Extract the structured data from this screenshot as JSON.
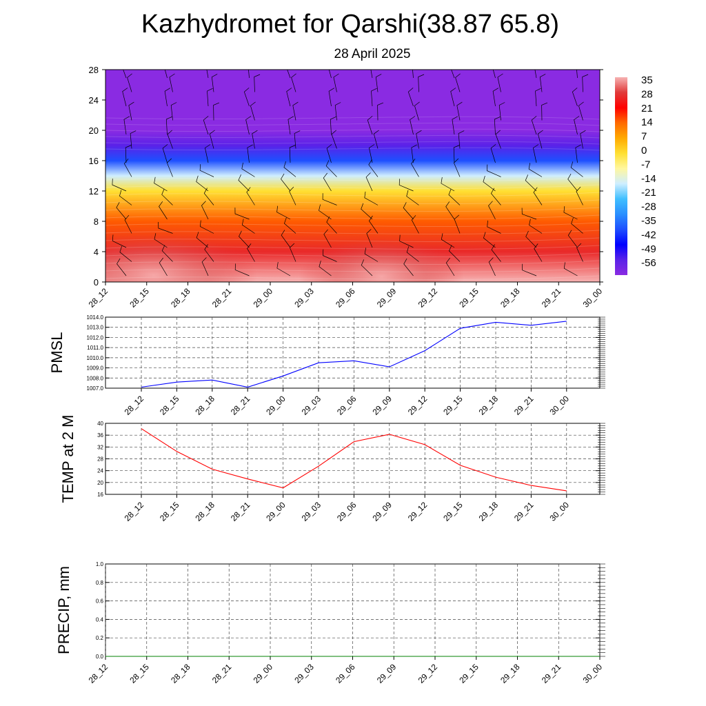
{
  "header": {
    "title": "Kazhydromet for Qarshi(38.87 65.8)",
    "date": "28 April 2025"
  },
  "chart_data": [
    {
      "type": "heatmap",
      "name": "vertical-cross-section",
      "x_labels": [
        "28_12",
        "28_15",
        "28_18",
        "28_21",
        "29_00",
        "29_03",
        "29_06",
        "29_09",
        "29_12",
        "29_15",
        "29_18",
        "29_21",
        "30_00"
      ],
      "ylim": [
        0,
        28
      ],
      "y_ticks": [
        0,
        4,
        8,
        12,
        16,
        20,
        24,
        28
      ],
      "legend_placement": "right",
      "colorbar": {
        "labels": [
          "35",
          "28",
          "21",
          "14",
          "7",
          "0",
          "-7",
          "-14",
          "-21",
          "-28",
          "-35",
          "-42",
          "-49",
          "-56"
        ],
        "colors": [
          "#f7b3b3",
          "#e03a3a",
          "#ff0000",
          "#ff6a00",
          "#ffaa00",
          "#ffe033",
          "#fff7a0",
          "#cfeeff",
          "#40bfff",
          "#2a8fff",
          "#1e4fff",
          "#0000ff",
          "#5a22e8",
          "#8a2be2"
        ]
      },
      "temperature_profile": [
        {
          "height": 0,
          "temp": 35
        },
        {
          "height": 4,
          "temp": 26
        },
        {
          "height": 8,
          "temp": 15
        },
        {
          "height": 12,
          "temp": 0
        },
        {
          "height": 14,
          "temp": -14
        },
        {
          "height": 16,
          "temp": -35
        },
        {
          "height": 18,
          "temp": -49
        },
        {
          "height": 20,
          "temp": -56
        },
        {
          "height": 28,
          "temp": -60
        }
      ],
      "wind_barbs": true
    },
    {
      "type": "line",
      "name": "pmsl",
      "ylabel": "PMSL",
      "categories": [
        "28_12",
        "28_15",
        "28_18",
        "28_21",
        "29_00",
        "29_03",
        "29_06",
        "29_09",
        "29_12",
        "29_15",
        "29_18",
        "29_21",
        "30_00"
      ],
      "values": [
        1007.1,
        1007.6,
        1007.8,
        1007.1,
        1008.2,
        1009.5,
        1009.7,
        1009.1,
        1010.7,
        1012.9,
        1013.5,
        1013.2,
        1013.6
      ],
      "ylim": [
        1007.0,
        1014.0
      ],
      "y_ticks": [
        "1007.0",
        "1008.0",
        "1009.0",
        "1010.0",
        "1011.0",
        "1012.0",
        "1013.0",
        "1014.0"
      ],
      "color": "#0000ff",
      "grid": true
    },
    {
      "type": "line",
      "name": "temp2m",
      "ylabel": "TEMP at 2 M",
      "categories": [
        "28_12",
        "28_15",
        "28_18",
        "28_21",
        "29_00",
        "29_03",
        "29_06",
        "29_09",
        "29_12",
        "29_15",
        "29_18",
        "29_21",
        "30_00"
      ],
      "values": [
        38.2,
        30.5,
        24.5,
        21.2,
        18.2,
        25.5,
        33.8,
        36.3,
        32.8,
        25.8,
        21.8,
        19.0,
        17.2
      ],
      "ylim": [
        16,
        40
      ],
      "y_ticks": [
        "16",
        "20",
        "24",
        "28",
        "32",
        "36",
        "40"
      ],
      "color": "#ff0000",
      "grid": true
    },
    {
      "type": "line",
      "name": "precip",
      "ylabel": "PRECIP, mm",
      "x_labels": [
        "28_12",
        "28_15",
        "28_18",
        "28_21",
        "29_00",
        "29_03",
        "29_06",
        "29_09",
        "29_12",
        "29_15",
        "29_18",
        "29_21",
        "30_00"
      ],
      "values": [
        0,
        0,
        0,
        0,
        0,
        0,
        0,
        0,
        0,
        0,
        0,
        0,
        0
      ],
      "ylim": [
        0.0,
        1.0
      ],
      "y_ticks": [
        "0.0",
        "0.2",
        "0.4",
        "0.6",
        "0.8",
        "1.0"
      ],
      "color": "#008000",
      "grid": true
    }
  ]
}
